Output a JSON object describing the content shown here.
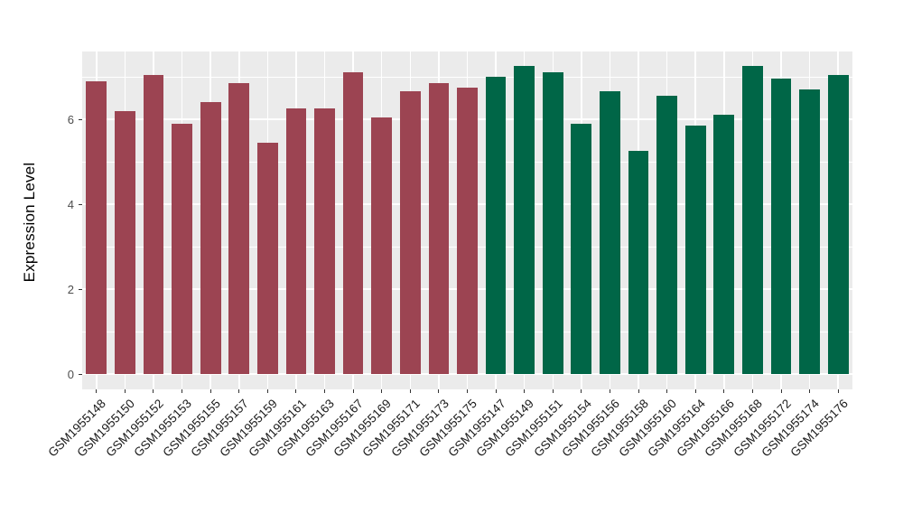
{
  "chart_data": {
    "type": "bar",
    "title": "",
    "xlabel": "",
    "ylabel": "Expression Level",
    "ylim": [
      -0.36,
      7.59
    ],
    "yticks": [
      0,
      2,
      4,
      6
    ],
    "ytick_labels": [
      "0",
      "2",
      "4",
      "6"
    ],
    "yticks_minor": [
      1,
      3,
      5,
      7
    ],
    "grid": "on",
    "legend": "none",
    "panel_bg_color": "#EBEBEB",
    "grid_color": "#FFFFFF",
    "series": [
      {
        "name": "maroon-group",
        "color": "#9C4452",
        "categories": [
          "GSM1955148",
          "GSM1955150",
          "GSM1955152",
          "GSM1955153",
          "GSM1955155",
          "GSM1955157",
          "GSM1955159",
          "GSM1955161",
          "GSM1955163",
          "GSM1955167",
          "GSM1955169",
          "GSM1955171",
          "GSM1955173",
          "GSM1955175"
        ],
        "values": [
          6.9,
          6.2,
          7.05,
          5.9,
          6.4,
          6.85,
          5.45,
          6.25,
          6.25,
          7.1,
          6.05,
          6.65,
          6.85,
          6.75
        ]
      },
      {
        "name": "green-group",
        "color": "#006647",
        "categories": [
          "GSM1955147",
          "GSM1955149",
          "GSM1955151",
          "GSM1955154",
          "GSM1955156",
          "GSM1955158",
          "GSM1955160",
          "GSM1955164",
          "GSM1955166",
          "GSM1955168",
          "GSM1955172",
          "GSM1955174",
          "GSM1955176"
        ],
        "values": [
          7.0,
          7.25,
          7.1,
          5.9,
          6.65,
          5.25,
          6.55,
          5.85,
          6.1,
          7.25,
          6.95,
          6.7,
          7.05
        ]
      }
    ]
  }
}
